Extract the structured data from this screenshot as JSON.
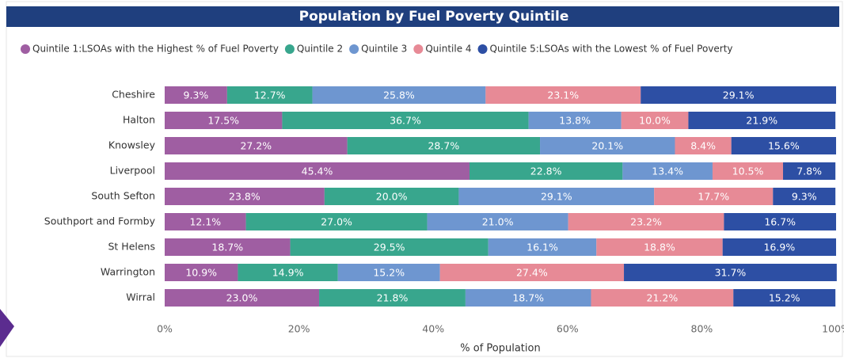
{
  "chart_data": {
    "type": "stacked-bar-horizontal",
    "title": "Population by Fuel Poverty Quintile",
    "x_label": "% of Population",
    "categories": [
      "Cheshire",
      "Halton",
      "Knowsley",
      "Liverpool",
      "South Sefton",
      "Southport and Formby",
      "St Helens",
      "Warrington",
      "Wirral"
    ],
    "series": [
      {
        "name": "Quintile 1:LSOAs with the Highest % of Fuel Poverty",
        "color": "#9f5ea2",
        "values": [
          9.3,
          17.5,
          27.2,
          45.4,
          23.8,
          12.1,
          18.7,
          10.9,
          23.0
        ],
        "value_labels": [
          "9.3%",
          "17.5%",
          "27.2%",
          "45.4%",
          "23.8%",
          "12.1%",
          "18.7%",
          "10.9%",
          "23.0%"
        ]
      },
      {
        "name": "Quintile 2",
        "color": "#38a68d",
        "values": [
          12.7,
          36.7,
          28.7,
          22.8,
          20.0,
          27.0,
          29.5,
          14.9,
          21.8
        ],
        "value_labels": [
          "12.7%",
          "36.7%",
          "28.7%",
          "22.8%",
          "20.0%",
          "27.0%",
          "29.5%",
          "14.9%",
          "21.8%"
        ]
      },
      {
        "name": "Quintile 3",
        "color": "#6e96d0",
        "values": [
          25.8,
          13.8,
          20.1,
          13.4,
          29.1,
          21.0,
          16.1,
          15.2,
          18.7
        ],
        "value_labels": [
          "25.8%",
          "13.8%",
          "20.1%",
          "13.4%",
          "29.1%",
          "21.0%",
          "16.1%",
          "15.2%",
          "18.7%"
        ]
      },
      {
        "name": "Quintile 4",
        "color": "#e78a96",
        "values": [
          23.1,
          10.0,
          8.4,
          10.5,
          17.7,
          23.2,
          18.8,
          27.4,
          21.2
        ],
        "value_labels": [
          "23.1%",
          "10.0%",
          "8.4%",
          "10.5%",
          "17.7%",
          "23.2%",
          "18.8%",
          "27.4%",
          "21.2%"
        ]
      },
      {
        "name": "Quintile 5:LSOAs with the Lowest % of Fuel Poverty",
        "color": "#2d4fa4",
        "values": [
          29.1,
          21.9,
          15.6,
          7.8,
          9.3,
          16.7,
          16.9,
          31.7,
          15.2
        ],
        "value_labels": [
          "29.1%",
          "21.9%",
          "15.6%",
          "7.8%",
          "9.3%",
          "16.7%",
          "16.9%",
          "31.7%",
          "15.2%"
        ]
      }
    ],
    "xlim": [
      0,
      100
    ],
    "xticks": [
      {
        "value": 0,
        "label": "0%"
      },
      {
        "value": 20,
        "label": "20%"
      },
      {
        "value": 40,
        "label": "40%"
      },
      {
        "value": 60,
        "label": "60%"
      },
      {
        "value": 80,
        "label": "80%"
      },
      {
        "value": 100,
        "label": "100%"
      }
    ],
    "legend": "top"
  }
}
